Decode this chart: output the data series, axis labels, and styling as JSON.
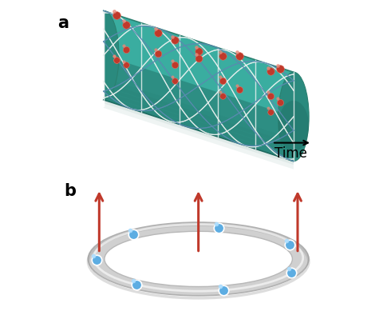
{
  "bg_color": "#ffffff",
  "label_fontsize": 15,
  "label_fontweight": "bold",
  "cylinder_color": "#3aada0",
  "cylinder_dark": "#2a8a7e",
  "cylinder_darker": "#1e6a60",
  "cylinder_edge": "#2a8070",
  "ion_color_red": "#c0392b",
  "ion_color_blue": "#5dade2",
  "arrow_color_red": "#c0392b",
  "time_label": "Time",
  "time_fontsize": 12,
  "white_line_color": "#e8f0ef",
  "blue_line_color": "#5a8ab0"
}
